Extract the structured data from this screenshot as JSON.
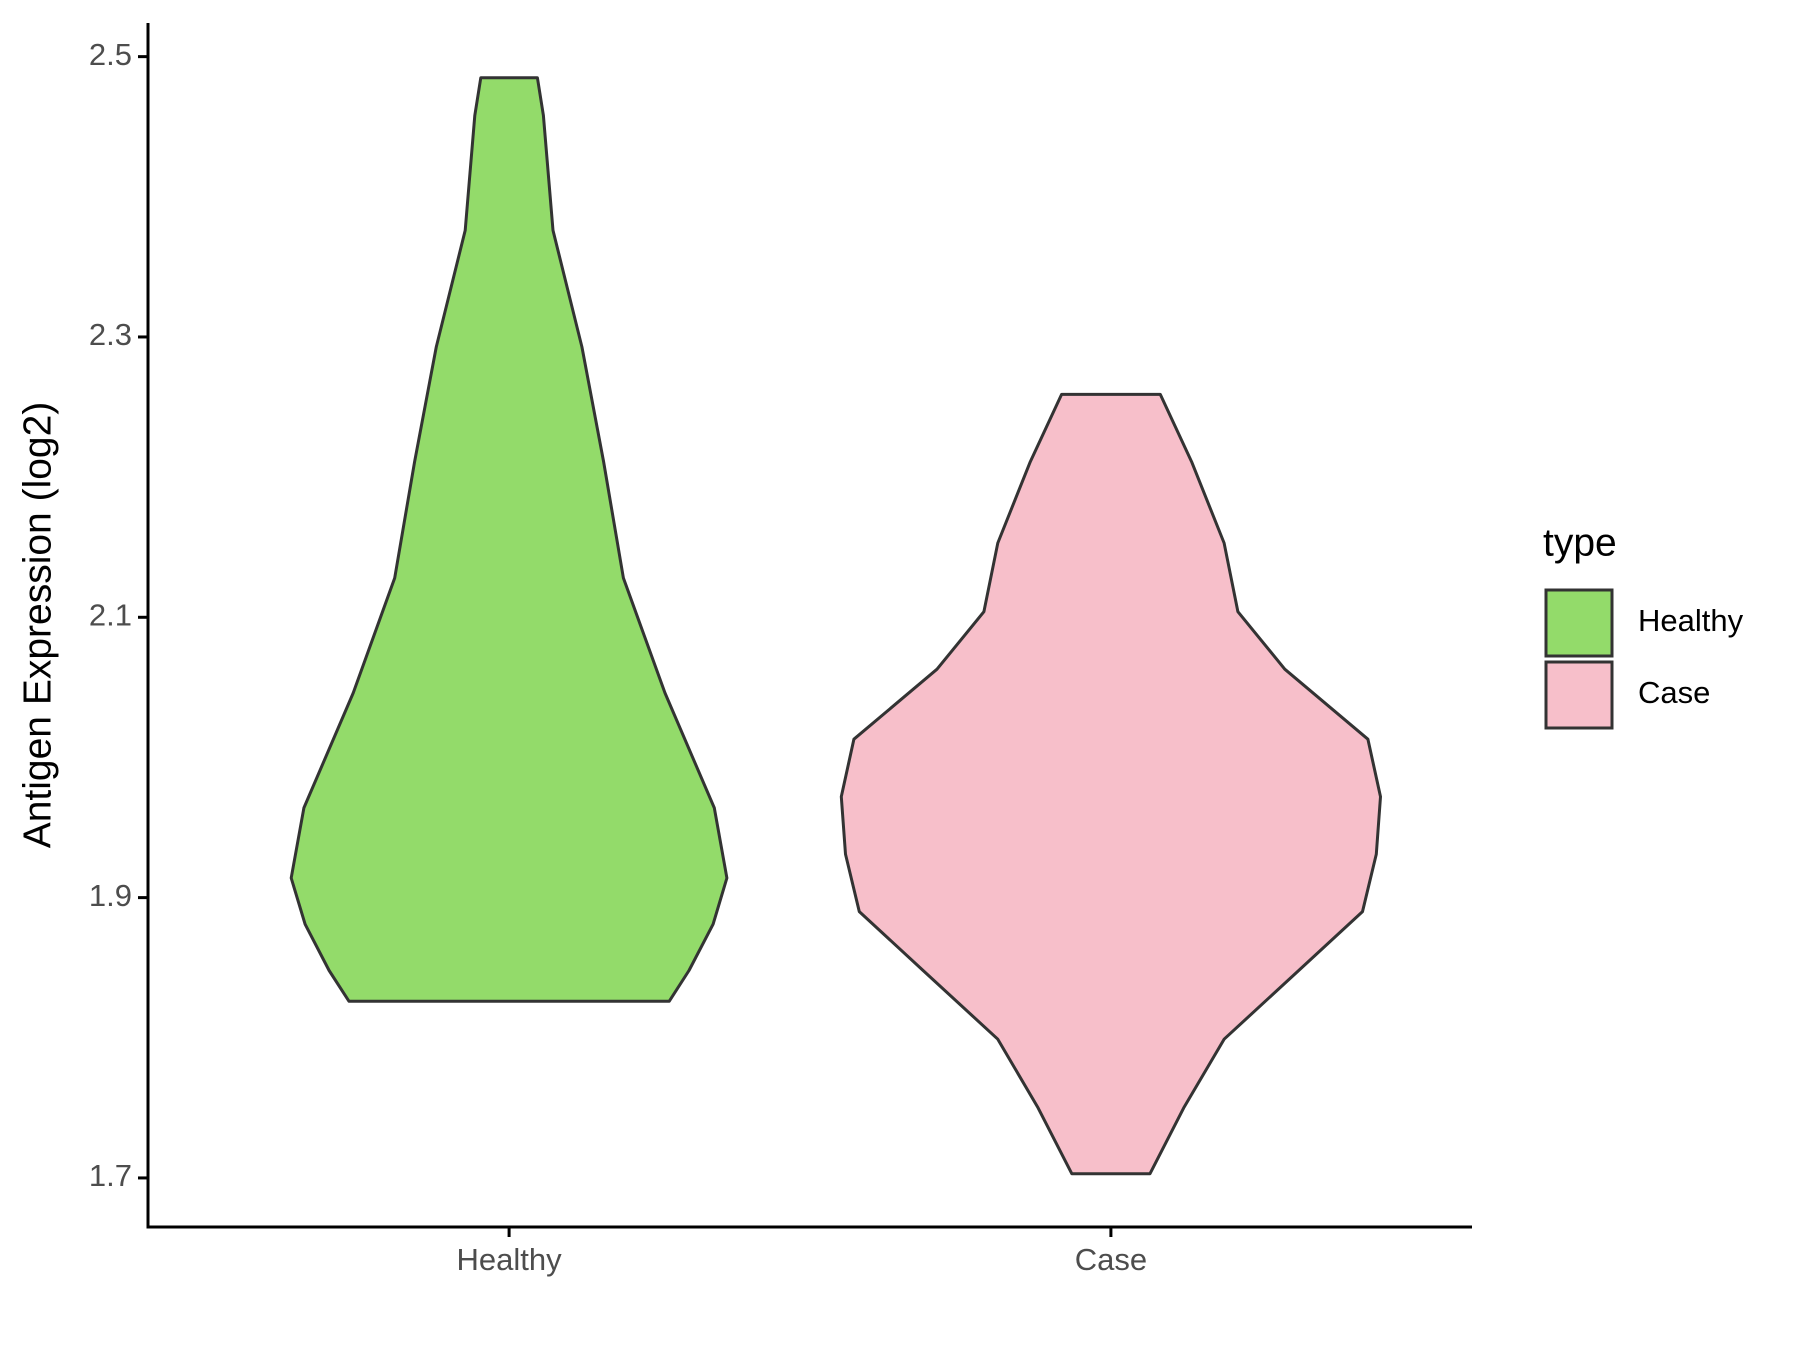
{
  "chart_data": {
    "type": "violin",
    "y_label": "Antigen Expression (log2)",
    "legend_title": "type",
    "categories": [
      "Healthy",
      "Case"
    ],
    "series": [
      {
        "name": "Healthy",
        "color": "#93db6a",
        "y": [
          2.485,
          2.458,
          2.376,
          2.293,
          2.211,
          2.128,
          2.046,
          1.964,
          1.914,
          1.881,
          1.848,
          1.826
        ],
        "width": [
          0.047,
          0.057,
          0.073,
          0.121,
          0.157,
          0.19,
          0.259,
          0.341,
          0.362,
          0.339,
          0.299,
          0.266
        ]
      },
      {
        "name": "Case",
        "color": "#f7bfca",
        "y": [
          2.259,
          2.211,
          2.153,
          2.104,
          2.063,
          2.013,
          1.972,
          1.931,
          1.89,
          1.848,
          1.799,
          1.75,
          1.703
        ],
        "width": [
          0.082,
          0.134,
          0.188,
          0.211,
          0.289,
          0.427,
          0.448,
          0.441,
          0.418,
          0.312,
          0.188,
          0.121,
          0.065
        ]
      }
    ],
    "ylim": [
      1.665,
      2.524
    ],
    "yticks": [
      1.7,
      1.9,
      2.1,
      2.3,
      2.5
    ]
  }
}
